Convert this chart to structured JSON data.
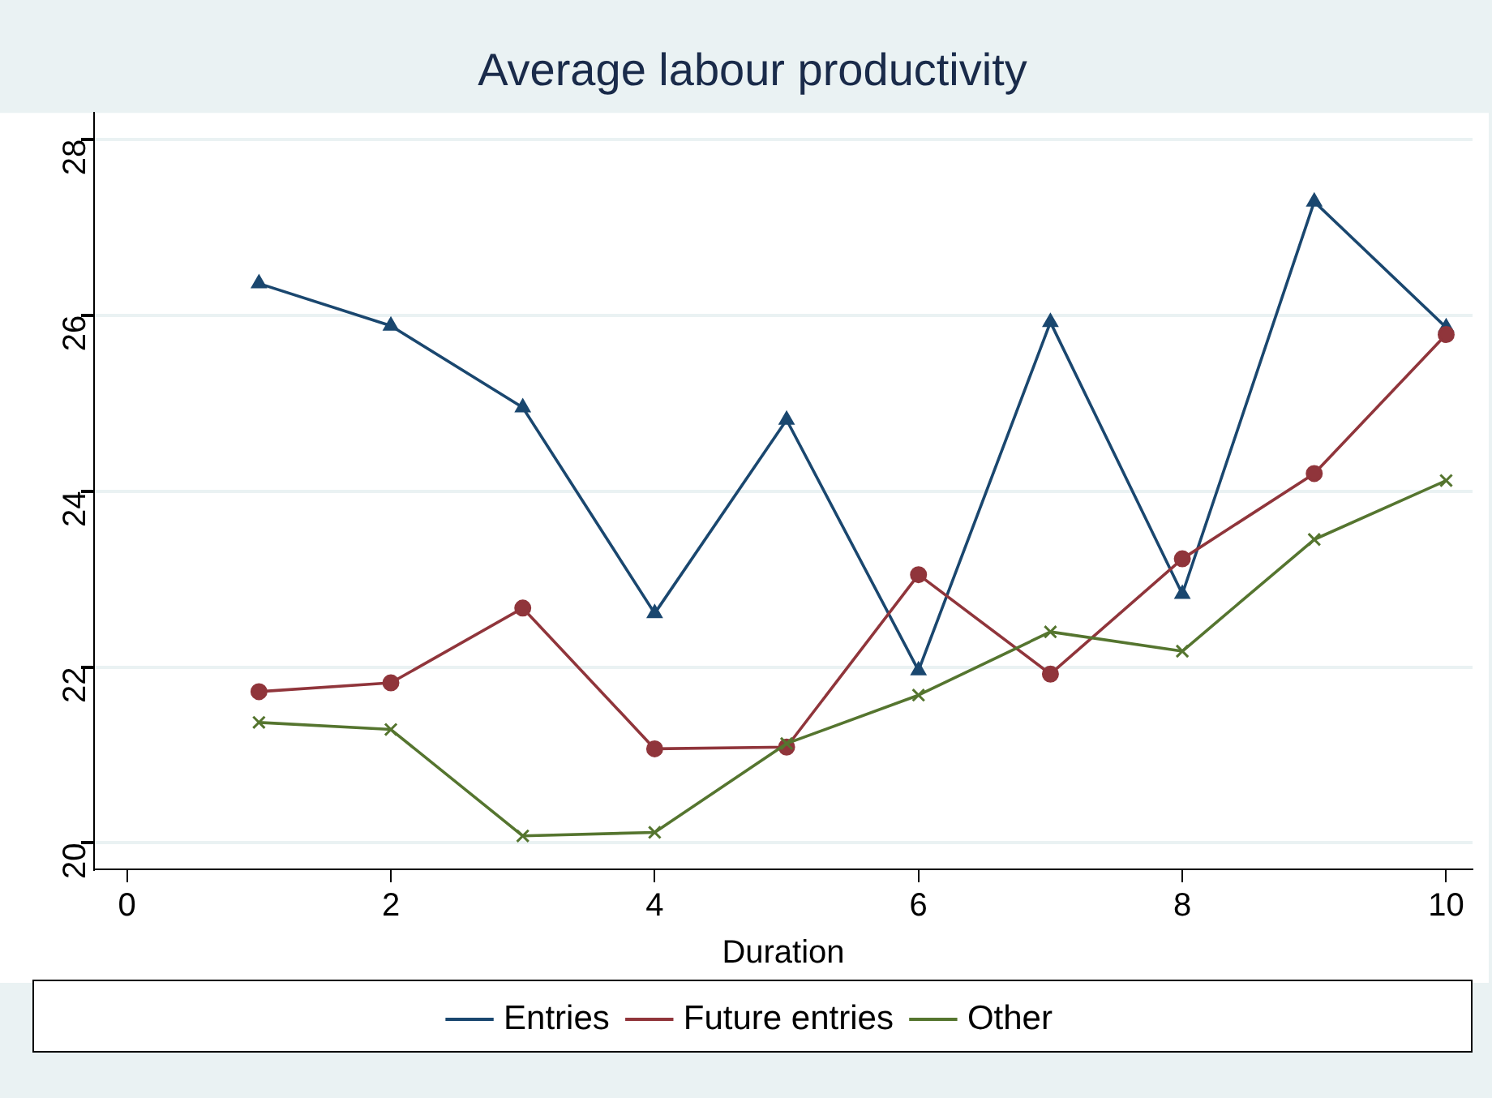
{
  "chart_data": {
    "type": "line",
    "title": "Average labour productivity",
    "xlabel": "Duration",
    "xlim": [
      -0.25,
      10.2
    ],
    "xticks": [
      0,
      2,
      4,
      6,
      8,
      10
    ],
    "ylim": [
      19.7,
      28.3
    ],
    "yticks": [
      20,
      22,
      24,
      26,
      28
    ],
    "grid": "y",
    "legend": "bottom",
    "line_style": "solid",
    "series": [
      {
        "name": "Entries",
        "color": "#1a476f",
        "marker": "triangle",
        "x": [
          1,
          2,
          3,
          4,
          5,
          6,
          7,
          8,
          9,
          10
        ],
        "values": [
          26.36,
          25.88,
          24.95,
          22.61,
          24.81,
          21.96,
          25.92,
          22.83,
          27.29,
          25.86
        ]
      },
      {
        "name": "Future entries",
        "color": "#90353b",
        "marker": "circle",
        "x": [
          1,
          2,
          3,
          4,
          5,
          6,
          7,
          8,
          9,
          10
        ],
        "values": [
          21.72,
          21.82,
          22.67,
          21.07,
          21.09,
          23.05,
          21.92,
          23.23,
          24.2,
          25.78
        ]
      },
      {
        "name": "Other",
        "color": "#55752f",
        "marker": "cross",
        "x": [
          1,
          2,
          3,
          4,
          5,
          6,
          7,
          8,
          9,
          10
        ],
        "values": [
          21.37,
          21.29,
          20.08,
          20.12,
          21.13,
          21.68,
          22.4,
          22.18,
          23.45,
          24.12
        ]
      }
    ]
  }
}
